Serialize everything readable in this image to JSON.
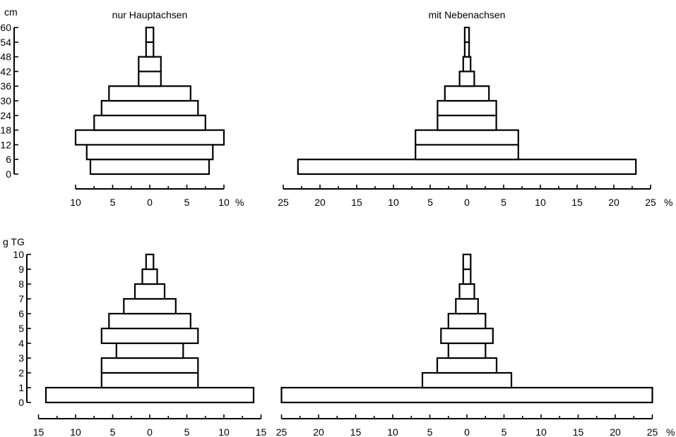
{
  "chart_data": [
    {
      "type": "bar",
      "orientation": "horizontal-population-pyramid",
      "title": "nur Hauptachsen",
      "ylabel": "cm",
      "xlabel": "%",
      "categories": [
        "0",
        "6",
        "12",
        "18",
        "24",
        "30",
        "36",
        "42",
        "48",
        "54"
      ],
      "y_tick_labels": [
        "0",
        "6",
        "12",
        "18",
        "24",
        "30",
        "36",
        "42",
        "48",
        "54",
        "60"
      ],
      "values": [
        8,
        8.5,
        10,
        7.5,
        6.5,
        5.5,
        1.5,
        1.5,
        0.5,
        0.5
      ],
      "xlim": [
        -10,
        10
      ],
      "x_tick_labels": [
        "10",
        "5",
        "0",
        "5",
        "10"
      ]
    },
    {
      "type": "bar",
      "orientation": "horizontal-population-pyramid",
      "title": "mit Nebenachsen",
      "xlabel": "%",
      "categories": [
        "0",
        "6",
        "12",
        "18",
        "24",
        "30",
        "36",
        "42",
        "48",
        "54"
      ],
      "values": [
        23,
        7,
        7,
        4,
        4,
        3,
        1,
        0.5,
        0.3,
        0.3
      ],
      "xlim": [
        -25,
        25
      ],
      "x_tick_labels": [
        "25",
        "20",
        "15",
        "10",
        "5",
        "0",
        "5",
        "10",
        "15",
        "20",
        "25"
      ]
    },
    {
      "type": "bar",
      "orientation": "horizontal-population-pyramid",
      "ylabel": "g TG",
      "categories": [
        "0",
        "1",
        "2",
        "3",
        "4",
        "5",
        "6",
        "7",
        "8",
        "9"
      ],
      "y_tick_labels": [
        "0",
        "1",
        "2",
        "3",
        "4",
        "5",
        "6",
        "7",
        "8",
        "9",
        "10"
      ],
      "values": [
        14,
        6.5,
        6.5,
        4.5,
        6.5,
        5.5,
        3.5,
        2,
        1,
        0.5
      ],
      "xlim": [
        -15,
        15
      ],
      "x_tick_labels": [
        "15",
        "10",
        "5",
        "0",
        "5",
        "10",
        "15"
      ]
    },
    {
      "type": "bar",
      "orientation": "horizontal-population-pyramid",
      "xlabel": "%",
      "categories": [
        "0",
        "1",
        "2",
        "3",
        "4",
        "5",
        "6",
        "7",
        "8",
        "9"
      ],
      "values": [
        25,
        6,
        4,
        2.5,
        3.5,
        2.5,
        1.5,
        1,
        0.5,
        0.5
      ],
      "xlim": [
        -25,
        25
      ],
      "x_tick_labels": [
        "25",
        "20",
        "15",
        "10",
        "5",
        "0",
        "5",
        "10",
        "15",
        "20",
        "25"
      ]
    }
  ]
}
